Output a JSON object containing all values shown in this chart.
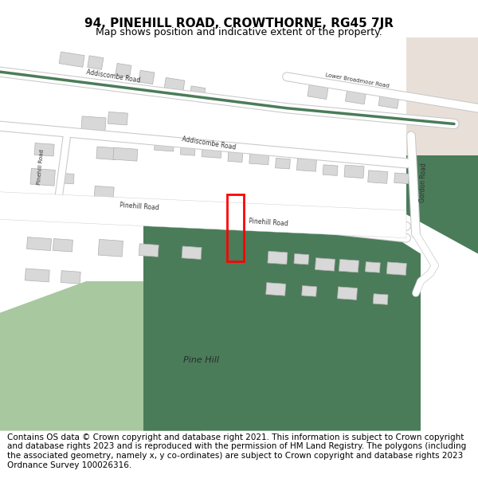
{
  "title": "94, PINEHILL ROAD, CROWTHORNE, RG45 7JR",
  "subtitle": "Map shows position and indicative extent of the property.",
  "footer": "Contains OS data © Crown copyright and database right 2021. This information is subject to Crown copyright and database rights 2023 and is reproduced with the permission of HM Land Registry. The polygons (including the associated geometry, namely x, y co-ordinates) are subject to Crown copyright and database rights 2023 Ordnance Survey 100026316.",
  "bg_map_color": "#f2f2f2",
  "road_color": "#ffffff",
  "road_outline_color": "#c8c8c8",
  "green_dark": "#4a7c59",
  "green_light": "#a8c8a0",
  "building_color": "#d8d8d8",
  "building_outline": "#b0b0b0",
  "property_color": "#ff0000",
  "footer_bg": "#ffffff",
  "header_bg": "#ffffff",
  "title_fontsize": 11,
  "subtitle_fontsize": 9,
  "footer_fontsize": 7.5
}
